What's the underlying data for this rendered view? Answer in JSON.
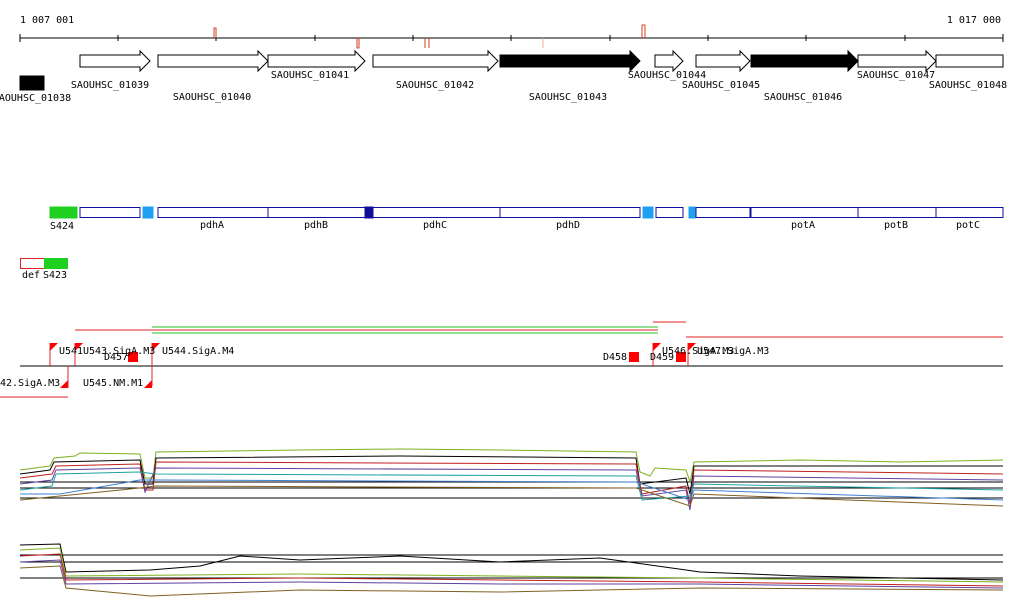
{
  "ruler": {
    "start": "1 007 001",
    "end": "1 017 000"
  },
  "genes": [
    "AOUHSC_01038",
    "SAOUHSC_01039",
    "SAOUHSC_01040",
    "SAOUHSC_01041",
    "SAOUHSC_01042",
    "SAOUHSC_01043",
    "SAOUHSC_01044",
    "SAOUHSC_01045",
    "SAOUHSC_01046",
    "SAOUHSC_01047",
    "SAOUHSC_01048"
  ],
  "operons": [
    "S424",
    "pdhA",
    "pdhB",
    "pdhC",
    "pdhD",
    "potA",
    "potB",
    "potC"
  ],
  "reverse_features": [
    "def",
    "S423"
  ],
  "promoters": [
    "U541",
    "U543.SigA.M3",
    "D457",
    "U544.SigA.M4",
    "D458",
    "D459",
    "U546.SigA.M3",
    "U547.SigA.M3",
    "42.SigA.M3",
    "U545.NM.M1"
  ]
}
